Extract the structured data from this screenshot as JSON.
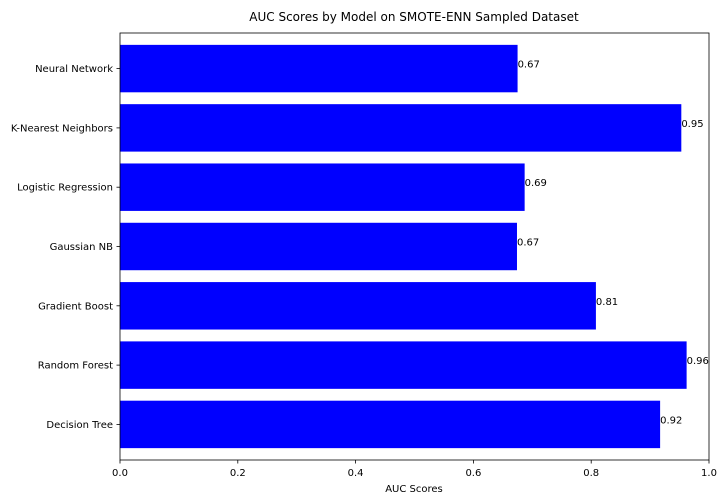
{
  "chart_data": {
    "type": "bar",
    "orientation": "horizontal",
    "title": "AUC Scores by Model on SMOTE-ENN Sampled Dataset",
    "xlabel": "AUC Scores",
    "ylabel": "",
    "categories": [
      "Decision Tree",
      "Random Forest",
      "Gradient Boost",
      "Gaussian NB",
      "Logistic Regression",
      "K-Nearest Neighbors",
      "Neural Network"
    ],
    "values": [
      0.917,
      0.962,
      0.808,
      0.674,
      0.687,
      0.953,
      0.675
    ],
    "value_labels": [
      "0.92",
      "0.96",
      "0.81",
      "0.67",
      "0.69",
      "0.95",
      "0.67"
    ],
    "xlim": [
      0,
      1.0
    ],
    "xticks": [
      0.0,
      0.2,
      0.4,
      0.6,
      0.8,
      1.0
    ],
    "xtick_labels": [
      "0.0",
      "0.2",
      "0.4",
      "0.6",
      "0.8",
      "1.0"
    ],
    "grid": false,
    "bar_color": "#0000ff"
  }
}
